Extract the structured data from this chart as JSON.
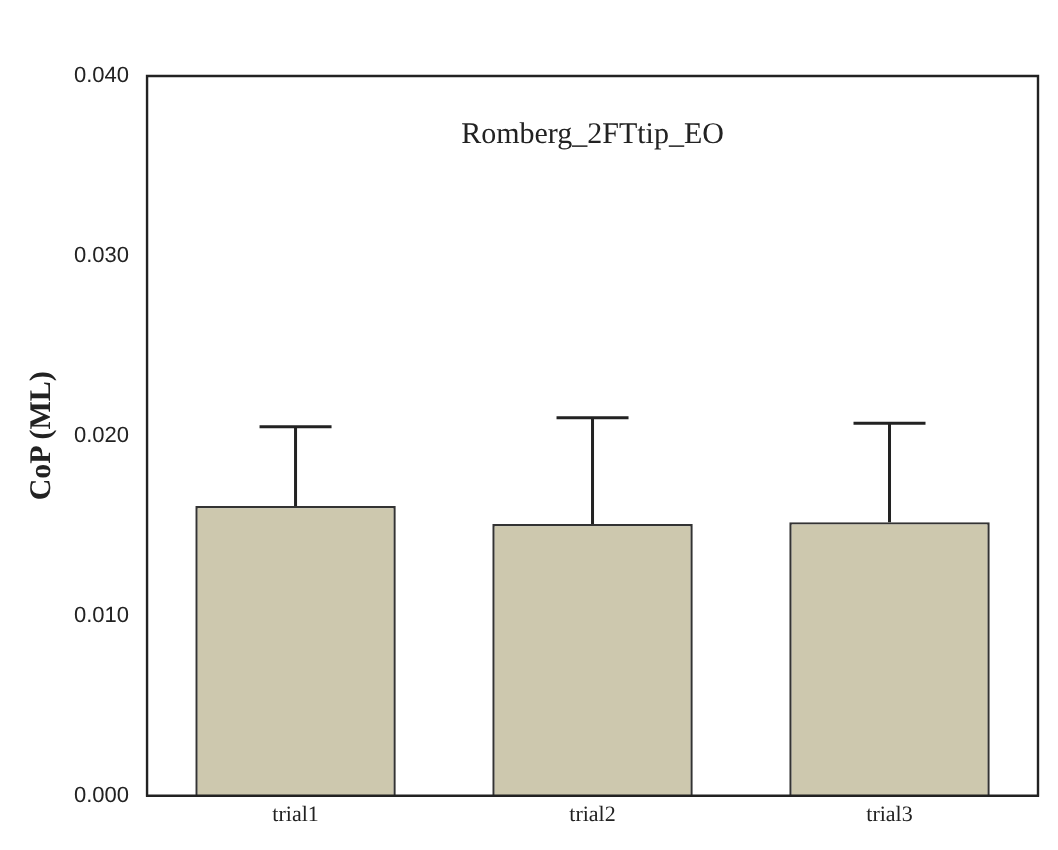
{
  "chart_data": {
    "type": "bar",
    "title": "Romberg_2FTtip_EO",
    "ylabel": "CoP (ML)",
    "categories": [
      "trial1",
      "trial2",
      "trial3"
    ],
    "values": [
      0.0161,
      0.0151,
      0.0152
    ],
    "errors": [
      [
        0.0161,
        0.0205
      ],
      [
        0.0151,
        0.021
      ],
      [
        0.0152,
        0.0207
      ]
    ],
    "color": "#cdc8ae",
    "ylim": [
      0,
      0.04
    ],
    "yticks": [
      {
        "value": 0,
        "label": "0.000"
      },
      {
        "value": 0.01,
        "label": "0.010"
      },
      {
        "value": 0.02,
        "label": "0.020"
      },
      {
        "value": 0.03,
        "label": "0.030"
      },
      {
        "value": 0.04,
        "label": "0.040"
      }
    ],
    "grid": false
  }
}
